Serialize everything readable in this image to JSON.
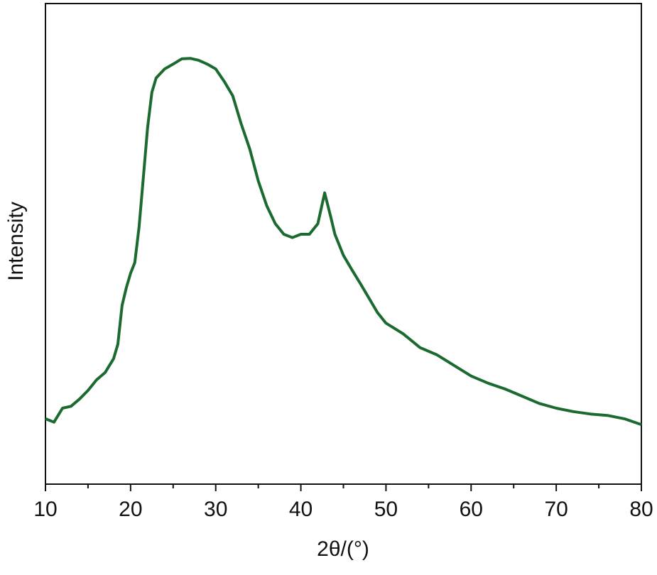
{
  "chart_data": {
    "type": "line",
    "x_label": "2θ/(°)",
    "y_label": "Intensity",
    "x": [
      10,
      11,
      12,
      13,
      14,
      15,
      16,
      17,
      18,
      18.5,
      19,
      19.5,
      20,
      20.5,
      21,
      21.5,
      22,
      22.5,
      23,
      24,
      25,
      26,
      27,
      28,
      29,
      30,
      31,
      32,
      33,
      34,
      35,
      36,
      37,
      38,
      39,
      40,
      41,
      42,
      42.8,
      43.5,
      44,
      45,
      46,
      47,
      48,
      49,
      50,
      52,
      54,
      56,
      58,
      60,
      62,
      64,
      66,
      68,
      70,
      72,
      74,
      76,
      78,
      80
    ],
    "series": [
      {
        "name": "Intensity",
        "color": "#1b6b30",
        "values": [
          13.6,
          12.9,
          15.8,
          16.2,
          17.7,
          19.5,
          21.7,
          23.2,
          26.1,
          29.1,
          37.2,
          40.9,
          43.9,
          46.1,
          53.5,
          63.8,
          74.2,
          81.5,
          84.5,
          86.4,
          87.4,
          88.5,
          88.6,
          88.2,
          87.4,
          86.4,
          83.8,
          80.8,
          74.9,
          69.7,
          63.1,
          57.9,
          54.2,
          52.0,
          51.3,
          52.0,
          52.0,
          54.2,
          60.6,
          55.7,
          52.0,
          47.6,
          44.6,
          41.7,
          38.7,
          35.7,
          33.5,
          31.3,
          28.4,
          26.9,
          24.7,
          22.5,
          21.0,
          19.8,
          18.3,
          16.8,
          15.8,
          15.1,
          14.6,
          14.3,
          13.6,
          12.4
        ]
      }
    ],
    "xlim": [
      10,
      80
    ],
    "xticks": [
      10,
      20,
      30,
      40,
      50,
      60,
      70,
      80
    ],
    "xminorticks": [
      15,
      25,
      35,
      45,
      55,
      65,
      75
    ],
    "ylim": [
      0,
      100
    ],
    "grid": false
  }
}
